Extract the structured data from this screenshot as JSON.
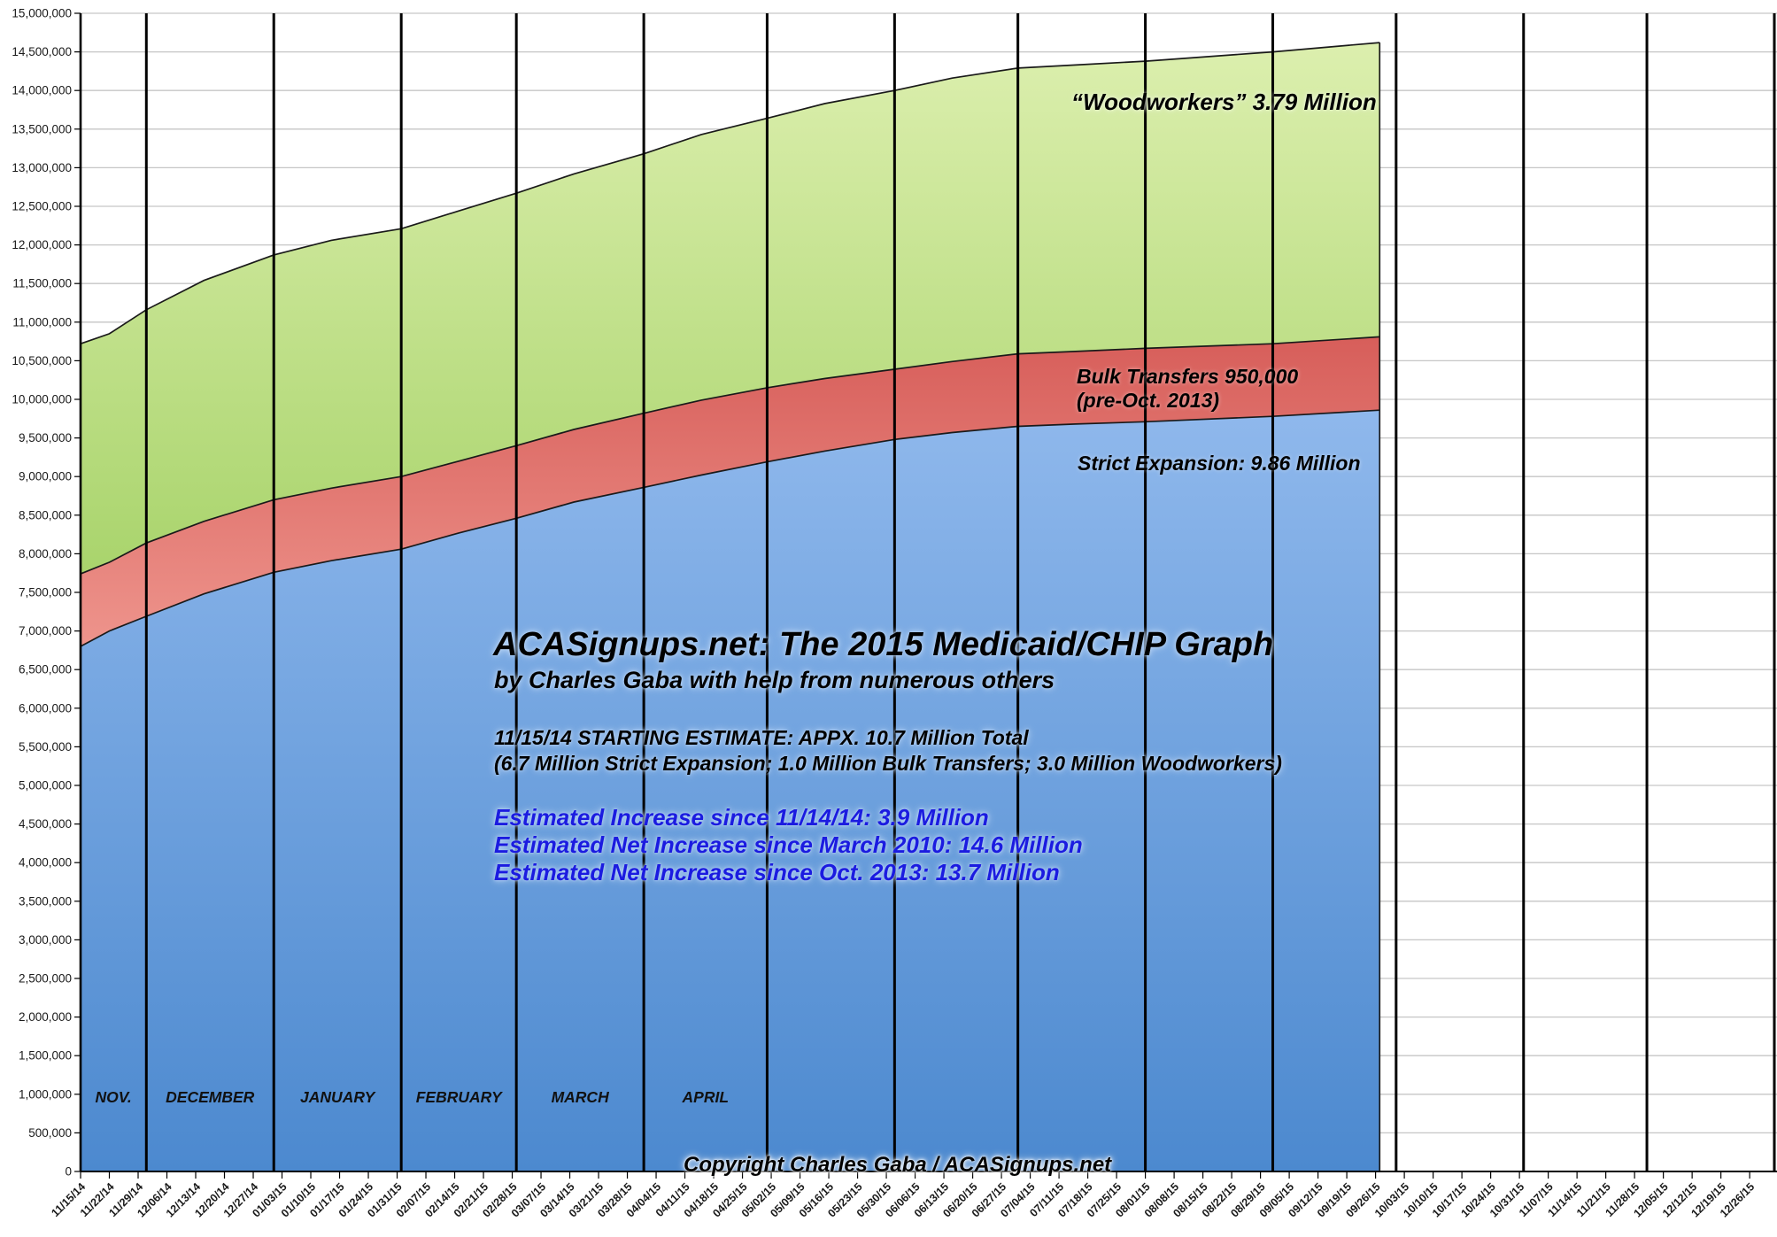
{
  "annotations": {
    "title": "ACASignups.net: The 2015 Medicaid/CHIP Graph",
    "subtitle": "by Charles Gaba with help from numerous others",
    "estimate_line1": "11/15/14 STARTING ESTIMATE: APPX. 10.7 Million Total",
    "estimate_line2": "(6.7 Million Strict Expansion; 1.0 Million Bulk Transfers; 3.0 Million Woodworkers)",
    "increase_line1": "Estimated Increase since 11/14/14: 3.9 Million",
    "increase_line2": "Estimated Net Increase since March 2010: 14.6 Million",
    "increase_line3": "Estimated Net Increase since Oct. 2013: 13.7 Million",
    "copyright": "Copyright Charles Gaba / ACASignups.net",
    "label_woodworkers": "“Woodworkers” 3.79 Million",
    "label_bulk_line1": "Bulk Transfers 950,000",
    "label_bulk_line2": "(pre-Oct. 2013)",
    "label_strict": "Strict Expansion: 9.86 Million",
    "text_blue_color": "#1b1be0"
  },
  "chart_data": {
    "type": "area",
    "stacked": true,
    "title": "ACASignups.net: The 2015 Medicaid/CHIP Graph",
    "xlabel": "",
    "ylabel": "",
    "ylim": [
      0,
      15000000
    ],
    "y_tick_step": 500000,
    "grid": "horizontal-gray, vertical-black-at-month-starts",
    "legend_position": "inline-labels",
    "x_axis_start": "11/15/14",
    "x_axis_end": "01/01/16",
    "data_end": "09/26/15",
    "y_labels": [
      "0",
      "500,000",
      "1,000,000",
      "1,500,000",
      "2,000,000",
      "2,500,000",
      "3,000,000",
      "3,500,000",
      "4,000,000",
      "4,500,000",
      "5,000,000",
      "5,500,000",
      "6,000,000",
      "6,500,000",
      "7,000,000",
      "7,500,000",
      "8,000,000",
      "8,500,000",
      "9,000,000",
      "9,500,000",
      "10,000,000",
      "10,500,000",
      "11,000,000",
      "11,500,000",
      "12,000,000",
      "12,500,000",
      "13,000,000",
      "13,500,000",
      "14,000,000",
      "14,500,000",
      "15,000,000"
    ],
    "x_labels": [
      "11/15/14",
      "11/22/14",
      "11/29/14",
      "12/06/14",
      "12/13/14",
      "12/20/14",
      "12/27/14",
      "01/03/15",
      "01/10/15",
      "01/17/15",
      "01/24/15",
      "01/31/15",
      "02/07/15",
      "02/14/15",
      "02/21/15",
      "02/28/15",
      "03/07/15",
      "03/14/15",
      "03/21/15",
      "03/28/15",
      "04/04/15",
      "04/11/15",
      "04/18/15",
      "04/25/15",
      "05/02/15",
      "05/09/15",
      "05/16/15",
      "05/23/15",
      "05/30/15",
      "06/06/15",
      "06/13/15",
      "06/20/15",
      "06/27/15",
      "07/04/15",
      "07/11/15",
      "07/18/15",
      "07/25/15",
      "08/01/15",
      "08/08/15",
      "08/15/15",
      "08/22/15",
      "08/29/15",
      "09/05/15",
      "09/12/15",
      "09/19/15",
      "09/26/15",
      "10/03/15",
      "10/10/15",
      "10/17/15",
      "10/24/15",
      "10/31/15",
      "11/07/15",
      "11/14/15",
      "11/21/15",
      "11/28/15",
      "12/05/15",
      "12/12/15",
      "12/19/15",
      "12/26/15"
    ],
    "month_labels": [
      {
        "label": "NOV.",
        "start_day": 0,
        "end_day": 16
      },
      {
        "label": "DECEMBER",
        "start_day": 16,
        "end_day": 47
      },
      {
        "label": "JANUARY",
        "start_day": 47,
        "end_day": 78
      },
      {
        "label": "FEBRUARY",
        "start_day": 78,
        "end_day": 106
      },
      {
        "label": "MARCH",
        "start_day": 106,
        "end_day": 137
      },
      {
        "label": "APRIL",
        "start_day": 137,
        "end_day": 167
      }
    ],
    "month_boundary_days": [
      16,
      47,
      78,
      106,
      137,
      167,
      198,
      228,
      259,
      290,
      320,
      351,
      381,
      412
    ],
    "axis_total_days": 412,
    "series": [
      {
        "name": "Strict Expansion",
        "final_value_millions": 9.86
      },
      {
        "name": "Bulk Transfers (pre-Oct. 2013)",
        "band_millions": 0.95
      },
      {
        "name": "Woodworkers",
        "final_value_millions": 3.79
      }
    ],
    "samples": {
      "dates": [
        "11/15/14",
        "11/22/14",
        "12/01/14",
        "12/15/14",
        "01/01/15",
        "01/15/15",
        "02/01/15",
        "02/15/15",
        "03/01/15",
        "03/15/15",
        "04/01/15",
        "04/15/15",
        "05/01/15",
        "05/15/15",
        "06/01/15",
        "06/15/15",
        "07/01/15",
        "07/15/15",
        "08/01/15",
        "09/01/15",
        "09/26/15"
      ],
      "days": [
        0,
        7,
        16,
        30,
        47,
        61,
        78,
        92,
        106,
        120,
        137,
        151,
        167,
        181,
        198,
        212,
        228,
        242,
        259,
        290,
        316
      ],
      "strict_expansion_millions": [
        6.8,
        7.0,
        7.19,
        7.48,
        7.76,
        7.91,
        8.06,
        8.27,
        8.46,
        8.67,
        8.86,
        9.02,
        9.19,
        9.33,
        9.48,
        9.57,
        9.65,
        9.68,
        9.71,
        9.78,
        9.86
      ],
      "bulk_cumulative_millions": [
        7.74,
        7.89,
        8.14,
        8.42,
        8.7,
        8.85,
        9.0,
        9.2,
        9.4,
        9.61,
        9.82,
        9.99,
        10.15,
        10.27,
        10.39,
        10.49,
        10.59,
        10.62,
        10.66,
        10.72,
        10.81
      ],
      "total_millions": [
        10.72,
        10.85,
        11.16,
        11.54,
        11.87,
        12.06,
        12.21,
        12.44,
        12.67,
        12.92,
        13.18,
        13.43,
        13.64,
        13.83,
        14.0,
        14.16,
        14.29,
        14.33,
        14.38,
        14.5,
        14.62
      ]
    },
    "colors": {
      "blue_top": "#8FB8EC",
      "blue_bottom": "#4C89CF",
      "red_top": "#D75E5A",
      "red_bottom": "#EE948C",
      "green_top": "#DCEFAE",
      "green_bottom": "#A9D46C",
      "boundary_stroke": "#1a1a1a",
      "month_line": "#000000",
      "gridline": "#c6c6c6",
      "axis": "#000000",
      "tick_label": "#1a1a1a"
    }
  }
}
